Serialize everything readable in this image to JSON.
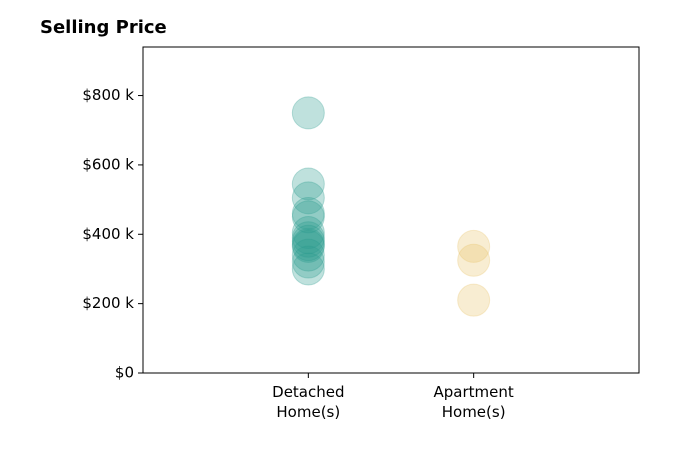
{
  "chart_data": {
    "type": "strip",
    "title": "Selling Price",
    "categories": [
      "Detached Home(s)",
      "Apartment Home(s)"
    ],
    "values": [
      [
        750000,
        545000,
        505000,
        460000,
        450000,
        405000,
        390000,
        380000,
        370000,
        365000,
        340000,
        320000,
        300000
      ],
      [
        365000,
        325000,
        210000
      ]
    ],
    "colors": [
      "#2a9d8f",
      "#e9c46a"
    ],
    "ylim": [
      0,
      940000
    ],
    "yticks": [
      {
        "value": 0,
        "label": "$0"
      },
      {
        "value": 200000,
        "label": "$200 k"
      },
      {
        "value": 400000,
        "label": "$400 k"
      },
      {
        "value": 600000,
        "label": "$600 k"
      },
      {
        "value": 800000,
        "label": "$800 k"
      }
    ]
  }
}
